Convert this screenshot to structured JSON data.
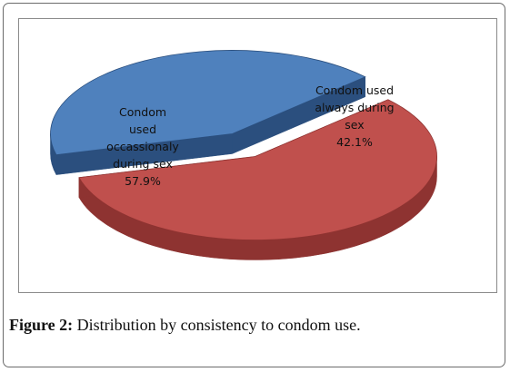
{
  "chart_data": {
    "type": "pie",
    "style": "3d-exploded",
    "slices": [
      {
        "label_lines": [
          "Condom",
          "used",
          "occassionaly",
          "during sex"
        ],
        "value": 57.9,
        "value_label": "57.9%",
        "color": "#c0504d",
        "side_color": "#8e3331"
      },
      {
        "label_lines": [
          "Condom used",
          "always during",
          "sex"
        ],
        "value": 42.1,
        "value_label": "42.1%",
        "color": "#4f81bd",
        "side_color": "#2b4f7e"
      }
    ]
  },
  "caption": {
    "figure_label": "Figure 2:",
    "text": " Distribution by consistency to condom use."
  }
}
